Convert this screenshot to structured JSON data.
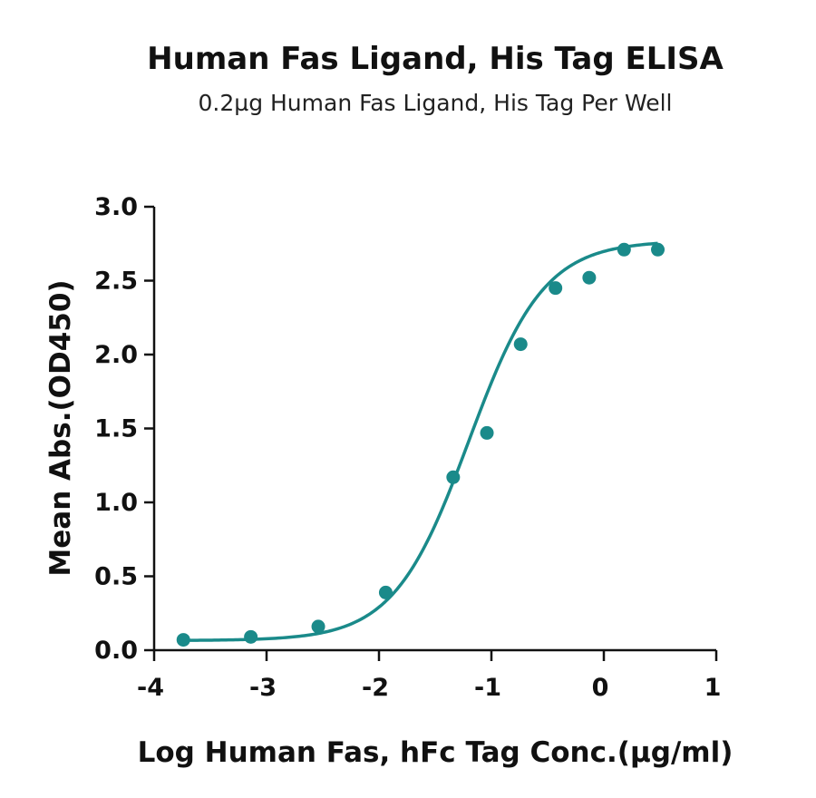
{
  "chart_data": {
    "type": "scatter",
    "title": "Human Fas Ligand, His Tag ELISA",
    "subtitle": "0.2µg Human Fas Ligand, His Tag Per Well",
    "xlabel": "Log Human Fas, hFc Tag Conc.(µg/ml)",
    "ylabel": "Mean Abs.(OD450)",
    "xlim": [
      -4,
      1
    ],
    "ylim": [
      0,
      3.0
    ],
    "x_ticks": [
      -4,
      -3,
      -2,
      -1,
      0,
      1
    ],
    "x_tick_labels": [
      "-4",
      "-3",
      "-2",
      "-1",
      "0",
      "1"
    ],
    "y_ticks": [
      0,
      0.5,
      1.0,
      1.5,
      2.0,
      2.5,
      3.0
    ],
    "y_tick_labels": [
      "0.0",
      "0.5",
      "1.0",
      "1.5",
      "2.0",
      "2.5",
      "3.0"
    ],
    "grid": false,
    "series": [
      {
        "color": "#1a8a8a",
        "x": [
          -3.74,
          -3.14,
          -2.54,
          -1.94,
          -1.34,
          -1.04,
          -0.74,
          -0.43,
          -0.13,
          0.18,
          0.48
        ],
        "y": [
          0.07,
          0.09,
          0.16,
          0.39,
          1.17,
          1.47,
          2.07,
          2.45,
          2.52,
          2.71,
          2.71
        ]
      }
    ],
    "fit_curve": {
      "model": "4PL",
      "bottom": 0.065,
      "top": 2.77,
      "log_ec50": -1.2,
      "hill": 1.3,
      "color": "#1a8a8a"
    }
  }
}
